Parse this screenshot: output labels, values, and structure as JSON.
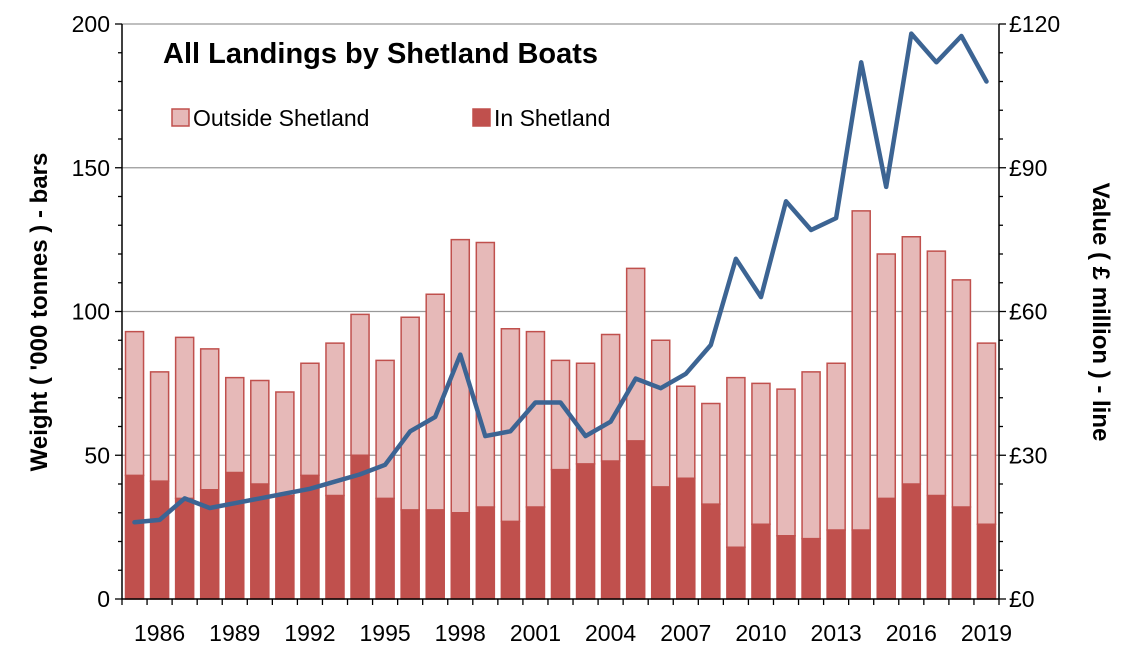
{
  "chart_data": {
    "type": "bar",
    "subtype": "stacked bar with line on secondary axis",
    "title": "All Landings by Shetland Boats",
    "ylabel_left": "Weight ( '000 tonnes ) - bars",
    "ylabel_right": "Value ( £ million ) - line",
    "ylim_left": [
      0,
      200
    ],
    "ylim_right": [
      0,
      120
    ],
    "yticks_left": [
      "0",
      "50",
      "100",
      "150",
      "200"
    ],
    "yticks_right": [
      "£0",
      "£30",
      "£60",
      "£90",
      "£120"
    ],
    "grid": true,
    "legend_position": "top-left",
    "x_tick_labels": [
      "1986",
      "1989",
      "1992",
      "1995",
      "1998",
      "2001",
      "2004",
      "2007",
      "2010",
      "2013",
      "2016",
      "2019"
    ],
    "categories": [
      "1985",
      "1986",
      "1987",
      "1988",
      "1989",
      "1990",
      "1991",
      "1992",
      "1993",
      "1994",
      "1995",
      "1996",
      "1997",
      "1998",
      "1999",
      "2000",
      "2001",
      "2002",
      "2003",
      "2004",
      "2005",
      "2006",
      "2007",
      "2008",
      "2009",
      "2010",
      "2011",
      "2012",
      "2013",
      "2014",
      "2015",
      "2016",
      "2017",
      "2018",
      "2019"
    ],
    "series": [
      {
        "name": "In Shetland",
        "kind": "bar",
        "axis": "left",
        "color": "#c0504d",
        "values": [
          43,
          41,
          35,
          38,
          44,
          40,
          36,
          43,
          36,
          50,
          35,
          31,
          31,
          30,
          32,
          27,
          32,
          45,
          47,
          48,
          55,
          39,
          42,
          33,
          18,
          26,
          22,
          21,
          24,
          24,
          35,
          40,
          36,
          32,
          26
        ]
      },
      {
        "name": "Outside Shetland",
        "kind": "bar",
        "axis": "left",
        "color": "#e6b9b8",
        "values": [
          50,
          38,
          56,
          49,
          33,
          36,
          36,
          39,
          53,
          49,
          48,
          67,
          75,
          95,
          92,
          67,
          61,
          38,
          35,
          44,
          60,
          51,
          32,
          35,
          59,
          49,
          51,
          58,
          58,
          111,
          85,
          86,
          85,
          79,
          63
        ]
      },
      {
        "kind": "line",
        "axis": "right",
        "color": "#3c6493",
        "values": [
          16,
          16.5,
          21,
          19,
          20,
          21,
          22,
          23,
          24.5,
          26,
          28,
          35,
          38,
          51,
          34,
          35,
          41,
          41,
          34,
          37,
          46,
          44,
          47,
          53,
          71,
          63,
          83,
          77,
          79.5,
          112,
          86,
          118,
          112,
          117.5,
          108
        ]
      }
    ]
  }
}
